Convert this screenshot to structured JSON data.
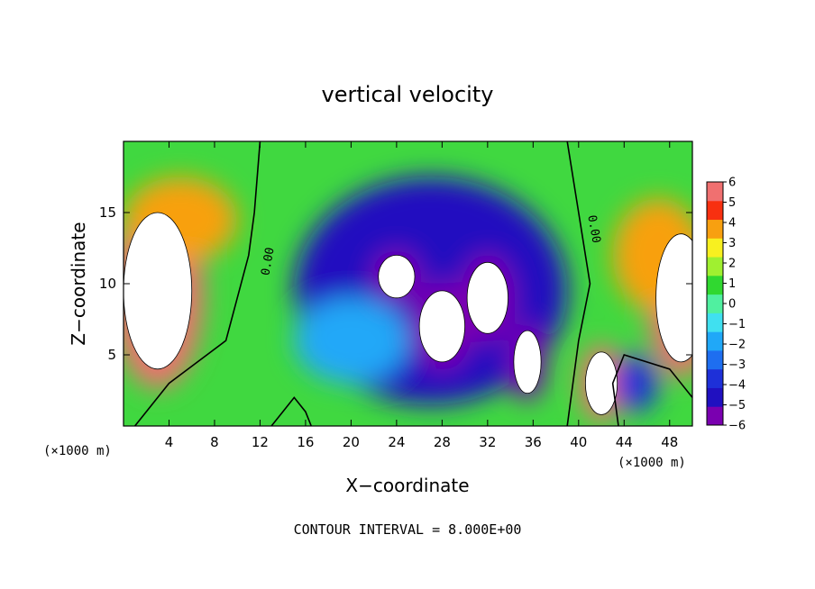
{
  "chart_data": {
    "type": "heatmap",
    "title": "vertical velocity",
    "xlabel": "X−coordinate",
    "ylabel": "Z−coordinate",
    "x_unit_left": "(×1000 m)",
    "x_unit_right": "(×1000 m)",
    "xlim": [
      0,
      50
    ],
    "ylim": [
      0,
      20
    ],
    "x_ticks": [
      4,
      8,
      12,
      16,
      20,
      24,
      28,
      32,
      36,
      40,
      44,
      48
    ],
    "x_tick_labels": [
      "4",
      "8",
      "12",
      "16",
      "20",
      "24",
      "28",
      "32",
      "36",
      "40",
      "44",
      "48"
    ],
    "y_ticks": [
      5,
      10,
      15
    ],
    "y_tick_labels": [
      "5",
      "10",
      "15"
    ],
    "colorbar": {
      "min": -6,
      "max": 6,
      "tick_labels": [
        "6",
        "5",
        "4",
        "3",
        "2",
        "1",
        "0",
        "−1",
        "−2",
        "−3",
        "−4",
        "−5",
        "−6"
      ],
      "colors": [
        "#7a00b0",
        "#2010c0",
        "#1e30d8",
        "#1e6ef0",
        "#20a8f8",
        "#40e0f0",
        "#50f0a0",
        "#30d830",
        "#a0f030",
        "#f8f020",
        "#f8a010",
        "#f83010",
        "#f07070"
      ]
    },
    "contour_label": "0.00",
    "footer": "CONTOUR INTERVAL = 8.000E+00",
    "features": [
      {
        "x": 3,
        "z": 9.5,
        "value": 7,
        "rx": 3,
        "rz": 5.5
      },
      {
        "x": 5,
        "z": 14.5,
        "value": 4,
        "rx": 5,
        "rz": 3
      },
      {
        "x": 49,
        "z": 9,
        "value": 7,
        "rx": 2.2,
        "rz": 4.5
      },
      {
        "x": 47,
        "z": 12,
        "value": 4,
        "rx": 4,
        "rz": 4
      },
      {
        "x": 42,
        "z": 3,
        "value": 7,
        "rx": 1.4,
        "rz": 2.2
      },
      {
        "x": 27,
        "z": 9.5,
        "value": -5,
        "rx": 12,
        "rz": 8
      },
      {
        "x": 24,
        "z": 10.5,
        "value": -7,
        "rx": 1.6,
        "rz": 1.5
      },
      {
        "x": 28,
        "z": 7,
        "value": -7,
        "rx": 2,
        "rz": 2.5
      },
      {
        "x": 32,
        "z": 9,
        "value": -7,
        "rx": 1.8,
        "rz": 2.5
      },
      {
        "x": 35.5,
        "z": 4.5,
        "value": -7,
        "rx": 1.2,
        "rz": 2.2
      },
      {
        "x": 20,
        "z": 6,
        "value": -2,
        "rx": 5,
        "rz": 3
      },
      {
        "x": 45,
        "z": 3,
        "value": -4,
        "rx": 2,
        "rz": 2
      }
    ]
  }
}
